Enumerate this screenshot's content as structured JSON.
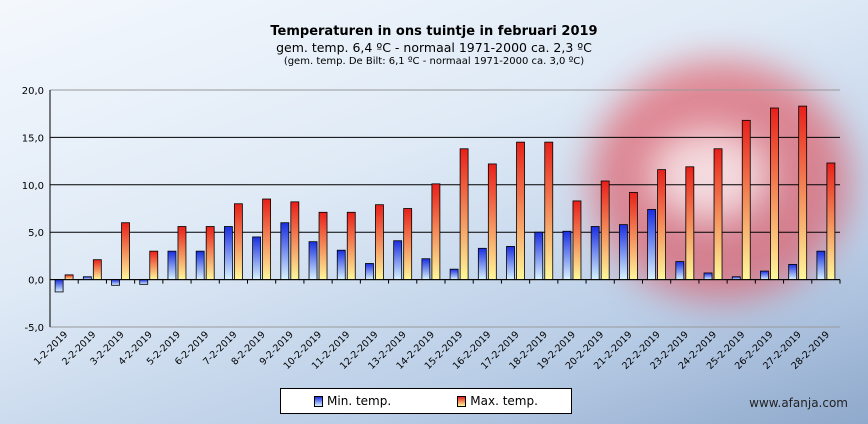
{
  "chart_data": {
    "type": "bar",
    "title": "Temperaturen  in ons tuintje in februari 2019",
    "subtitle": "gem.  temp. 6,4 ºC - normaal  1971-2000 ca. 2,3 ºC",
    "subtitle2": "(gem. temp. De Bilt: 6,1 ºC - normaal 1971-2000 ca. 3,0 ºC)",
    "xlabel": "",
    "ylabel": "",
    "ylim": [
      -5,
      20
    ],
    "yticks": [
      "-5,0",
      "0,0",
      "5,0",
      "10,0",
      "15,0",
      "20,0"
    ],
    "grid": true,
    "legend_position": "bottom",
    "categories": [
      "1-2-2019",
      "2-2-2019",
      "3-2-2019",
      "4-2-2019",
      "5-2-2019",
      "6-2-2019",
      "7-2-2019",
      "8-2-2019",
      "9-2-2019",
      "10-2-2019",
      "11-2-2019",
      "12-2-2019",
      "13-2-2019",
      "14-2-2019",
      "15-2-2019",
      "16-2-2019",
      "17-2-2019",
      "18-2-2019",
      "19-2-2019",
      "20-2-2019",
      "21-2-2019",
      "22-2-2019",
      "23-2-2019",
      "24-2-2019",
      "25-2-2019",
      "26-2-2019",
      "27-2-2019",
      "28-2-2019"
    ],
    "series": [
      {
        "name": "Min. temp.",
        "values": [
          -1.3,
          0.3,
          -0.6,
          -0.5,
          3.0,
          3.0,
          5.6,
          4.5,
          6.0,
          4.0,
          3.1,
          1.7,
          4.1,
          2.2,
          1.1,
          3.3,
          3.5,
          5.0,
          5.1,
          5.6,
          5.8,
          7.4,
          1.9,
          0.7,
          0.3,
          0.9,
          1.6,
          3.0
        ]
      },
      {
        "name": "Max. temp.",
        "values": [
          0.5,
          2.1,
          6.0,
          3.0,
          5.6,
          5.6,
          8.0,
          8.5,
          8.2,
          7.1,
          7.1,
          7.9,
          7.5,
          10.1,
          13.8,
          12.2,
          14.5,
          14.5,
          8.3,
          10.4,
          9.2,
          11.6,
          11.9,
          13.8,
          16.8,
          18.1,
          18.3,
          12.3
        ]
      }
    ]
  },
  "watermark": "www.afanja.com",
  "colors": {
    "min_top": "#1a2ee0",
    "min_bottom": "#d8f4ff",
    "max_top": "#e8201a",
    "max_bottom": "#fff89a"
  }
}
